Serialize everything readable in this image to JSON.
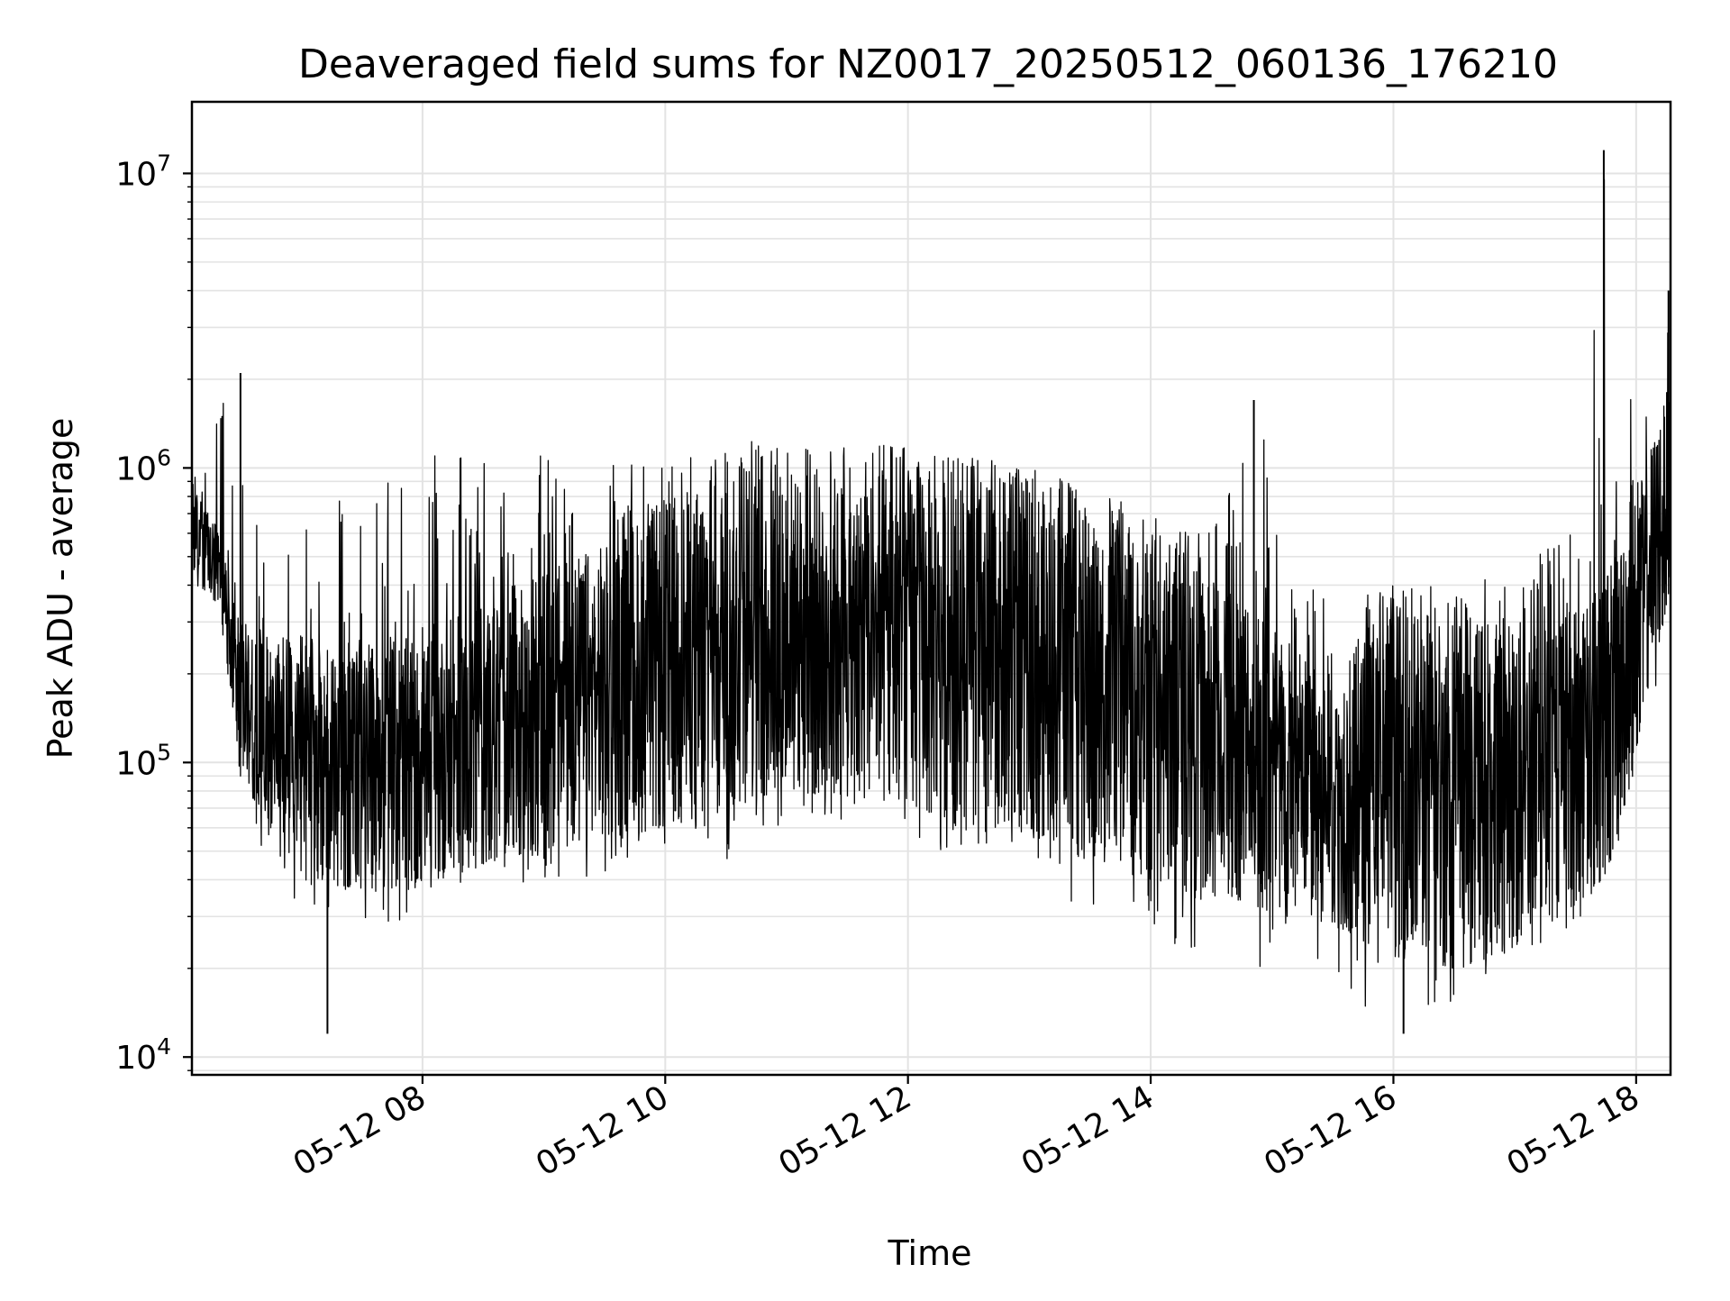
{
  "chart_data": {
    "type": "line",
    "title": "Deaveraged field sums for NZ0017_20250512_060136_176210",
    "xlabel": "Time",
    "ylabel": "Peak ADU - average",
    "y_scale": "log",
    "x_range": [
      "2025-05-12 06:06",
      "2025-05-12 18:17"
    ],
    "ylim": [
      8700,
      17500000
    ],
    "grid": true,
    "x_ticks": [
      "05-12 08",
      "05-12 10",
      "05-12 12",
      "05-12 14",
      "05-12 16",
      "05-12 18"
    ],
    "y_ticks": [
      {
        "base": "10",
        "exp": "4"
      },
      {
        "base": "10",
        "exp": "5"
      },
      {
        "base": "10",
        "exp": "6"
      },
      {
        "base": "10",
        "exp": "7"
      }
    ],
    "series": [
      {
        "color": "#000000",
        "band": {
          "x": [
            "06:06",
            "06:20",
            "06:30",
            "07:00",
            "07:30",
            "08:00",
            "08:30",
            "09:00",
            "09:30",
            "10:00",
            "10:30",
            "11:00",
            "11:30",
            "12:00",
            "12:30",
            "13:00",
            "13:30",
            "14:00",
            "14:30",
            "14:55",
            "15:10",
            "15:30",
            "16:00",
            "16:30",
            "17:00",
            "17:30",
            "17:45",
            "18:00",
            "18:17"
          ],
          "lower": [
            450000,
            320000,
            90000,
            40000,
            37000,
            38000,
            45000,
            50000,
            55000,
            60000,
            70000,
            80000,
            75000,
            70000,
            60000,
            60000,
            45000,
            40000,
            33000,
            35000,
            32000,
            28000,
            22000,
            20000,
            23000,
            33000,
            40000,
            100000,
            400000
          ],
          "upper": [
            900000,
            600000,
            300000,
            270000,
            250000,
            270000,
            350000,
            450000,
            550000,
            800000,
            900000,
            1000000,
            1000000,
            1000000,
            950000,
            900000,
            700000,
            550000,
            450000,
            350000,
            250000,
            200000,
            350000,
            320000,
            300000,
            350000,
            500000,
            800000,
            2000000
          ],
          "spike_high": [
            1500000,
            2100000,
            1000000,
            900000,
            1100000,
            1100000,
            1100000,
            1100000,
            1100000,
            1000000,
            1300000,
            1200000,
            1200000,
            1200000,
            1100000,
            1000000,
            850000,
            700000,
            600000,
            1700000,
            400000,
            400000,
            400000,
            400000,
            450000,
            750000,
            12000000,
            1200000,
            4000000
          ],
          "spike_low": [
            350000,
            300000,
            60000,
            30000,
            28000,
            28000,
            38000,
            40000,
            40000,
            40000,
            45000,
            60000,
            60000,
            50000,
            50000,
            50000,
            28000,
            25000,
            21000,
            20000,
            20000,
            18000,
            12000,
            15000,
            18000,
            28000,
            38000,
            60000,
            400000
          ]
        },
        "spikes": [
          {
            "x": "06:21",
            "y": 1500000
          },
          {
            "x": "06:30",
            "y": 2100000
          },
          {
            "x": "07:13",
            "y": 12000
          },
          {
            "x": "14:51",
            "y": 1700000
          },
          {
            "x": "16:05",
            "y": 12000
          },
          {
            "x": "17:44",
            "y": 12000000
          },
          {
            "x": "18:16",
            "y": 4000000
          }
        ]
      }
    ]
  }
}
